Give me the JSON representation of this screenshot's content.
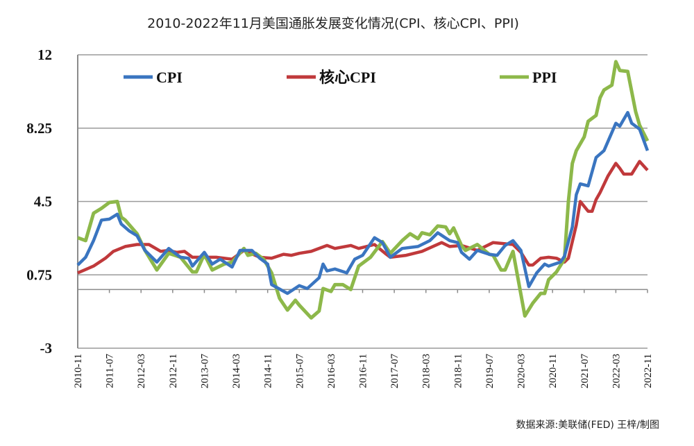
{
  "chart_data": {
    "type": "line",
    "title": "2010-2022年11月美国通胀发展变化情况(CPI、核心CPI、PPI)",
    "source": "数据来源:美联储(FED)  王梓/制图",
    "xlabel": "",
    "ylabel": "",
    "ylim": [
      -3,
      12
    ],
    "yticks": [
      "12",
      "8.25",
      "4.5",
      "0.75",
      "-3"
    ],
    "ytick_values": [
      12,
      8.25,
      4.5,
      0.75,
      -3
    ],
    "x_start": "2010-11",
    "x_months": 144,
    "xticks": [
      "2010-11",
      "2011-07",
      "2012-03",
      "2012-11",
      "2013-07",
      "2014-03",
      "2014-11",
      "2015-07",
      "2016-03",
      "2016-11",
      "2017-07",
      "2018-03",
      "2018-11",
      "2019-07",
      "2020-03",
      "2020-11",
      "2021-07",
      "2022-03",
      "2022-11"
    ],
    "xtick_step_months": 8,
    "grid": true,
    "legend_placement": "top",
    "series": [
      {
        "name": "CPI",
        "color": "#3a75c0",
        "points": [
          [
            0,
            1.25
          ],
          [
            2,
            1.65
          ],
          [
            4,
            2.5
          ],
          [
            6,
            3.55
          ],
          [
            8,
            3.6
          ],
          [
            10,
            3.85
          ],
          [
            11,
            3.35
          ],
          [
            13,
            3.0
          ],
          [
            15,
            2.75
          ],
          [
            17,
            2.0
          ],
          [
            20,
            1.4
          ],
          [
            23,
            2.1
          ],
          [
            26,
            1.65
          ],
          [
            28,
            1.6
          ],
          [
            29,
            1.2
          ],
          [
            32,
            1.9
          ],
          [
            34,
            1.3
          ],
          [
            36,
            1.55
          ],
          [
            39,
            1.15
          ],
          [
            41,
            2.0
          ],
          [
            44,
            2.0
          ],
          [
            46,
            1.6
          ],
          [
            48,
            1.3
          ],
          [
            49,
            0.25
          ],
          [
            53,
            -0.2
          ],
          [
            56,
            0.2
          ],
          [
            58,
            0.05
          ],
          [
            61,
            0.6
          ],
          [
            62,
            1.3
          ],
          [
            63,
            0.95
          ],
          [
            65,
            1.05
          ],
          [
            68,
            0.85
          ],
          [
            70,
            1.55
          ],
          [
            72,
            1.75
          ],
          [
            75,
            2.65
          ],
          [
            77,
            2.4
          ],
          [
            79,
            1.65
          ],
          [
            82,
            2.1
          ],
          [
            86,
            2.2
          ],
          [
            89,
            2.5
          ],
          [
            91,
            2.9
          ],
          [
            94,
            2.5
          ],
          [
            96,
            2.4
          ],
          [
            97,
            1.9
          ],
          [
            99,
            1.55
          ],
          [
            101,
            2.0
          ],
          [
            104,
            1.8
          ],
          [
            106,
            1.75
          ],
          [
            108,
            2.25
          ],
          [
            110,
            2.5
          ],
          [
            112,
            2.0
          ],
          [
            114,
            0.15
          ],
          [
            116,
            0.85
          ],
          [
            118,
            1.3
          ],
          [
            119,
            1.2
          ],
          [
            122,
            1.4
          ],
          [
            123,
            1.7
          ],
          [
            125,
            3.2
          ],
          [
            126,
            4.85
          ],
          [
            127,
            5.4
          ],
          [
            129,
            5.3
          ],
          [
            131,
            6.75
          ],
          [
            133,
            7.1
          ],
          [
            136,
            8.5
          ],
          [
            137,
            8.35
          ],
          [
            139,
            9.05
          ],
          [
            140,
            8.5
          ],
          [
            142,
            8.2
          ],
          [
            144,
            7.1
          ]
        ]
      },
      {
        "name": "核心CPI",
        "color": "#c0393b",
        "points": [
          [
            0,
            0.85
          ],
          [
            4,
            1.2
          ],
          [
            7,
            1.6
          ],
          [
            9,
            1.95
          ],
          [
            12,
            2.2
          ],
          [
            15,
            2.3
          ],
          [
            18,
            2.3
          ],
          [
            21,
            1.95
          ],
          [
            23,
            2.0
          ],
          [
            25,
            1.9
          ],
          [
            27,
            1.95
          ],
          [
            29,
            1.65
          ],
          [
            35,
            1.65
          ],
          [
            39,
            1.55
          ],
          [
            42,
            2.0
          ],
          [
            46,
            1.65
          ],
          [
            49,
            1.6
          ],
          [
            52,
            1.8
          ],
          [
            54,
            1.75
          ],
          [
            56,
            1.85
          ],
          [
            59,
            1.95
          ],
          [
            63,
            2.25
          ],
          [
            65,
            2.1
          ],
          [
            69,
            2.25
          ],
          [
            71,
            2.1
          ],
          [
            75,
            2.3
          ],
          [
            78,
            1.8
          ],
          [
            79,
            1.65
          ],
          [
            83,
            1.75
          ],
          [
            87,
            1.95
          ],
          [
            92,
            2.4
          ],
          [
            94,
            2.2
          ],
          [
            97,
            2.25
          ],
          [
            101,
            2.0
          ],
          [
            105,
            2.4
          ],
          [
            110,
            2.3
          ],
          [
            112,
            1.9
          ],
          [
            114,
            1.25
          ],
          [
            115,
            1.25
          ],
          [
            117,
            1.6
          ],
          [
            119,
            1.65
          ],
          [
            121,
            1.6
          ],
          [
            123,
            1.4
          ],
          [
            124,
            1.6
          ],
          [
            126,
            3.3
          ],
          [
            127,
            4.5
          ],
          [
            129,
            4.0
          ],
          [
            130,
            4.0
          ],
          [
            131,
            4.6
          ],
          [
            132,
            4.95
          ],
          [
            134,
            5.8
          ],
          [
            136,
            6.45
          ],
          [
            137,
            6.2
          ],
          [
            138,
            5.9
          ],
          [
            140,
            5.9
          ],
          [
            142,
            6.55
          ],
          [
            144,
            6.1
          ]
        ]
      },
      {
        "name": "PPI",
        "color": "#8db84a",
        "points": [
          [
            0,
            2.65
          ],
          [
            2,
            2.5
          ],
          [
            4,
            3.9
          ],
          [
            6,
            4.15
          ],
          [
            8,
            4.45
          ],
          [
            10,
            4.5
          ],
          [
            11,
            3.7
          ],
          [
            12,
            3.55
          ],
          [
            15,
            2.85
          ],
          [
            17,
            2.0
          ],
          [
            20,
            1.0
          ],
          [
            23,
            1.85
          ],
          [
            26,
            1.65
          ],
          [
            29,
            0.9
          ],
          [
            30,
            0.9
          ],
          [
            32,
            1.8
          ],
          [
            34,
            1.0
          ],
          [
            37,
            1.3
          ],
          [
            39,
            1.4
          ],
          [
            42,
            2.1
          ],
          [
            43,
            1.75
          ],
          [
            45,
            1.85
          ],
          [
            47,
            1.55
          ],
          [
            49,
            0.85
          ],
          [
            51,
            -0.45
          ],
          [
            53,
            -1.05
          ],
          [
            55,
            -0.55
          ],
          [
            56,
            -0.8
          ],
          [
            59,
            -1.45
          ],
          [
            61,
            -1.1
          ],
          [
            62,
            0.05
          ],
          [
            64,
            -0.1
          ],
          [
            65,
            0.25
          ],
          [
            67,
            0.25
          ],
          [
            69,
            0.0
          ],
          [
            71,
            1.2
          ],
          [
            74,
            1.65
          ],
          [
            77,
            2.45
          ],
          [
            79,
            1.85
          ],
          [
            82,
            2.5
          ],
          [
            84,
            2.85
          ],
          [
            86,
            2.6
          ],
          [
            87,
            2.9
          ],
          [
            89,
            2.8
          ],
          [
            91,
            3.25
          ],
          [
            93,
            3.2
          ],
          [
            94,
            2.85
          ],
          [
            95,
            3.15
          ],
          [
            97,
            2.25
          ],
          [
            98,
            2.0
          ],
          [
            101,
            2.3
          ],
          [
            104,
            1.8
          ],
          [
            105,
            1.75
          ],
          [
            107,
            1.0
          ],
          [
            108,
            1.0
          ],
          [
            110,
            1.95
          ],
          [
            113,
            -1.35
          ],
          [
            115,
            -0.7
          ],
          [
            117,
            -0.2
          ],
          [
            118,
            -0.2
          ],
          [
            119,
            0.5
          ],
          [
            121,
            0.9
          ],
          [
            123,
            1.55
          ],
          [
            124,
            4.5
          ],
          [
            125,
            6.45
          ],
          [
            126,
            7.1
          ],
          [
            128,
            7.8
          ],
          [
            129,
            8.6
          ],
          [
            131,
            8.9
          ],
          [
            132,
            9.8
          ],
          [
            133,
            10.2
          ],
          [
            135,
            10.45
          ],
          [
            136,
            11.65
          ],
          [
            137,
            11.2
          ],
          [
            139,
            11.15
          ],
          [
            141,
            9.1
          ],
          [
            142,
            8.4
          ],
          [
            144,
            7.6
          ]
        ]
      }
    ]
  }
}
